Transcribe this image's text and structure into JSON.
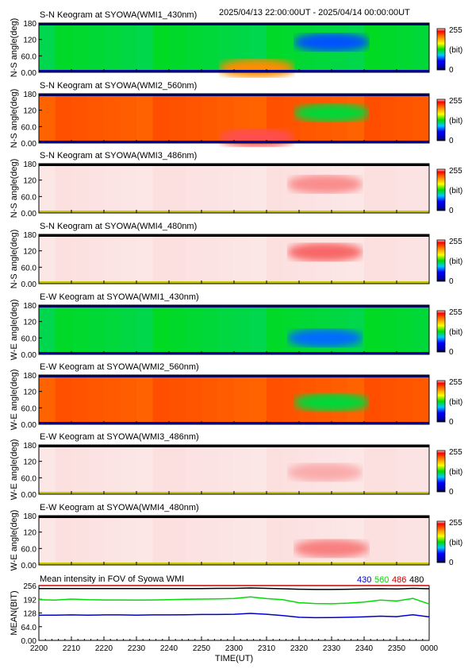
{
  "header": {
    "time_range": "2025/04/13 22:00:00UT - 2025/04/14 00:00:00UT"
  },
  "colorbar": {
    "max_label": "255",
    "unit_label": "(bit)",
    "min_label": "0"
  },
  "chart_data": [
    {
      "type": "heatmap",
      "title": "S-N Keogram at SYOWA(WMI1_430nm)",
      "ylabel": "N-S angle(deg)",
      "yticks": [
        "180",
        "120",
        "60.0",
        "0.00"
      ],
      "ylim": [
        0,
        180
      ],
      "colormap": "rainbow",
      "background_level": 120,
      "features": [
        {
          "t": 2330,
          "angle": 110,
          "level": 70
        },
        {
          "t": 2307,
          "angle": 15,
          "level": 200
        }
      ]
    },
    {
      "type": "heatmap",
      "title": "S-N Keogram at SYOWA(WMI2_560nm)",
      "ylabel": "N-S angle(deg)",
      "yticks": [
        "180",
        "120",
        "60.0",
        "0.00"
      ],
      "ylim": [
        0,
        180
      ],
      "colormap": "rainbow",
      "background_level": 215,
      "features": [
        {
          "t": 2330,
          "angle": 110,
          "level": 120
        },
        {
          "t": 2307,
          "angle": 20,
          "level": 245
        }
      ]
    },
    {
      "type": "heatmap",
      "title": "S-N Keogram at SYOWA(WMI3_486nm)",
      "ylabel": "N-S angle(deg)",
      "yticks": [
        "180",
        "120",
        "60.0",
        "0.00"
      ],
      "ylim": [
        0,
        180
      ],
      "colormap": "white-red",
      "background_level": 10,
      "features": [
        {
          "t": 2328,
          "angle": 105,
          "level": 80
        }
      ]
    },
    {
      "type": "heatmap",
      "title": "S-N Keogram at SYOWA(WMI4_480nm)",
      "ylabel": "N-S angle(deg)",
      "yticks": [
        "180",
        "120",
        "60.0",
        "0.00"
      ],
      "ylim": [
        0,
        180
      ],
      "colormap": "white-red",
      "background_level": 10,
      "features": [
        {
          "t": 2328,
          "angle": 115,
          "level": 110
        }
      ]
    },
    {
      "type": "heatmap",
      "title": "E-W Keogram at SYOWA(WMI1_430nm)",
      "ylabel": "W-E angle(deg)",
      "yticks": [
        "180",
        "120",
        "60.0",
        "0.00"
      ],
      "ylim": [
        0,
        180
      ],
      "colormap": "rainbow",
      "background_level": 120,
      "features": [
        {
          "t": 2328,
          "angle": 60,
          "level": 75
        }
      ]
    },
    {
      "type": "heatmap",
      "title": "E-W Keogram at SYOWA(WMI2_560nm)",
      "ylabel": "W-E angle(deg)",
      "yticks": [
        "180",
        "120",
        "60.0",
        "0.00"
      ],
      "ylim": [
        0,
        180
      ],
      "colormap": "rainbow",
      "background_level": 215,
      "features": [
        {
          "t": 2330,
          "angle": 80,
          "level": 120
        }
      ]
    },
    {
      "type": "heatmap",
      "title": "E-W Keogram at SYOWA(WMI3_486nm)",
      "ylabel": "W-E angle(deg)",
      "yticks": [
        "180",
        "120",
        "60.0",
        "0.00"
      ],
      "ylim": [
        0,
        180
      ],
      "colormap": "white-red",
      "background_level": 10,
      "features": [
        {
          "t": 2328,
          "angle": 80,
          "level": 55
        }
      ]
    },
    {
      "type": "heatmap",
      "title": "E-W Keogram at SYOWA(WMI4_480nm)",
      "ylabel": "W-E angle(deg)",
      "yticks": [
        "180",
        "120",
        "60.0",
        "0.00"
      ],
      "ylim": [
        0,
        180
      ],
      "colormap": "white-red",
      "background_level": 10,
      "features": [
        {
          "t": 2330,
          "angle": 60,
          "level": 90
        }
      ]
    },
    {
      "type": "line",
      "title": "Mean intensity in FOV of Syowa WMI",
      "ylabel": "MEAN(BIT)",
      "xlabel": "TIME(UT)",
      "ylim": [
        0,
        256
      ],
      "yticks": [
        "256",
        "192",
        "128",
        "64.0",
        "0.00"
      ],
      "x_ticks": [
        "2200",
        "2210",
        "2220",
        "2230",
        "2240",
        "2250",
        "2300",
        "2310",
        "2320",
        "2330",
        "2340",
        "2350",
        "0000"
      ],
      "x": [
        2200,
        2205,
        2210,
        2215,
        2220,
        2225,
        2230,
        2235,
        2240,
        2245,
        2250,
        2255,
        2300,
        2305,
        2310,
        2315,
        2320,
        2325,
        2330,
        2335,
        2340,
        2345,
        2350,
        2355,
        2400
      ],
      "series": [
        {
          "name": "430",
          "color": "#0000cc",
          "values": [
            118,
            118,
            119,
            118,
            119,
            119,
            118,
            119,
            119,
            120,
            121,
            121,
            122,
            126,
            122,
            116,
            108,
            106,
            107,
            108,
            110,
            113,
            111,
            120,
            110
          ]
        },
        {
          "name": "560",
          "color": "#00dd00",
          "values": [
            190,
            188,
            193,
            190,
            189,
            189,
            188,
            189,
            190,
            192,
            193,
            194,
            196,
            203,
            195,
            190,
            176,
            172,
            171,
            174,
            179,
            188,
            184,
            196,
            170
          ]
        },
        {
          "name": "486",
          "color": "#cc0000",
          "values": [
            256,
            256,
            256,
            256,
            256,
            256,
            256,
            256,
            256,
            256,
            256,
            256,
            256,
            256,
            256,
            256,
            256,
            256,
            256,
            256,
            256,
            256,
            256,
            256,
            256
          ]
        },
        {
          "name": "480",
          "color": "#000000",
          "values": [
            242,
            242,
            242,
            242,
            242,
            242,
            242,
            242,
            242,
            242,
            242,
            243,
            243,
            245,
            243,
            241,
            239,
            238,
            238,
            239,
            240,
            241,
            240,
            243,
            241
          ]
        }
      ]
    }
  ]
}
